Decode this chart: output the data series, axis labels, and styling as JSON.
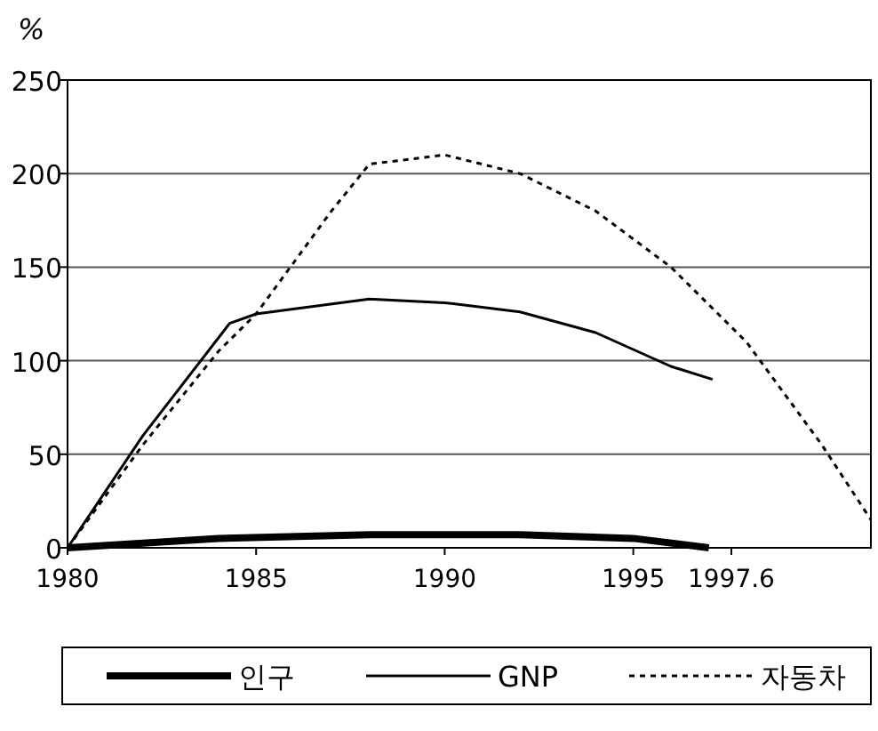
{
  "chart_data": {
    "type": "line",
    "ylabel": "%",
    "xlim": [
      1980,
      2001.3
    ],
    "ylim": [
      0,
      250
    ],
    "xticks": [
      1980,
      1985,
      1990,
      1995,
      1997.6
    ],
    "yticks": [
      0,
      50,
      100,
      150,
      200,
      250
    ],
    "grid": "y",
    "legend": "bottom",
    "series": [
      {
        "name": "인구",
        "color": "#000000",
        "line_style": "solid",
        "x": [
          1980,
          1984,
          1988,
          1992,
          1995,
          1997
        ],
        "values": [
          0,
          5,
          7,
          7,
          5,
          0
        ]
      },
      {
        "name": "GNP",
        "color": "#000000",
        "line_style": "solid",
        "x": [
          1980,
          1982,
          1984.3,
          1985,
          1988,
          1990,
          1992,
          1994,
          1996,
          1997.1
        ],
        "values": [
          0,
          60,
          120,
          125,
          133,
          131,
          126,
          115,
          97,
          90
        ]
      },
      {
        "name": "자동차",
        "color": "#000000",
        "line_style": "dotted",
        "x": [
          1980,
          1982,
          1984,
          1985,
          1987,
          1988,
          1990,
          1992,
          1994,
          1996,
          1998,
          2000,
          2001.3
        ],
        "values": [
          0,
          55,
          105,
          125,
          180,
          205,
          210,
          200,
          180,
          150,
          110,
          55,
          15
        ]
      }
    ]
  }
}
